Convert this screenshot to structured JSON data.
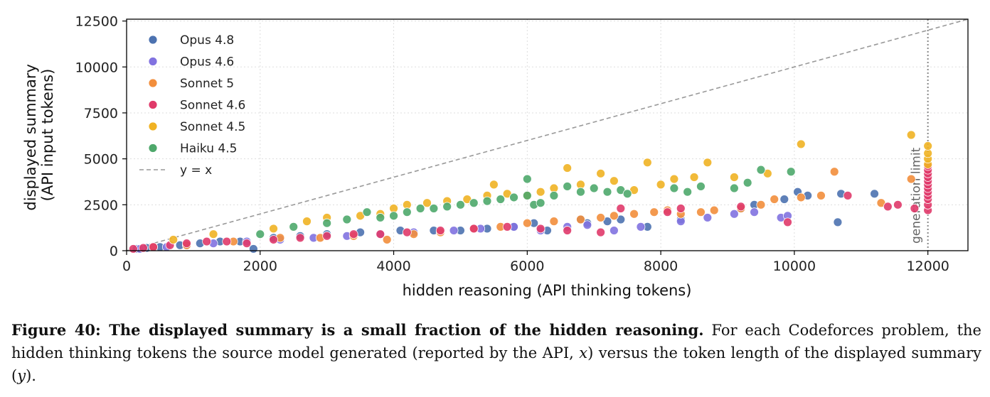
{
  "chart_data": {
    "type": "scatter",
    "xlabel": "hidden reasoning (API thinking tokens)",
    "ylabel": [
      "displayed summary",
      "(API input tokens)"
    ],
    "xlim": [
      0,
      12600
    ],
    "ylim": [
      0,
      12600
    ],
    "xticks": [
      "0",
      "2000",
      "4000",
      "6000",
      "8000",
      "10000",
      "12000"
    ],
    "yticks": [
      "0",
      "2500",
      "5000",
      "7500",
      "10000",
      "12500"
    ],
    "grid": true,
    "legend_position": "top-left",
    "reference_line": {
      "name": "y = x",
      "style": "dashed",
      "color": "#999999"
    },
    "vline": {
      "x": 12000,
      "label": "generation limit",
      "style": "dotted",
      "color": "#888888"
    },
    "series": [
      {
        "name": "Opus 4.8",
        "color": "#4C72B0",
        "x": [
          150,
          300,
          500,
          800,
          1100,
          1400,
          1700,
          1900,
          2200,
          2600,
          3000,
          3500,
          4100,
          4600,
          5000,
          5400,
          5800,
          6100,
          6300,
          6800,
          6900,
          7200,
          7400,
          7800,
          8300,
          9200,
          9400,
          9850,
          10050,
          10200,
          10650,
          10700,
          11200
        ],
        "y": [
          100,
          150,
          200,
          300,
          400,
          500,
          500,
          100,
          700,
          800,
          900,
          1000,
          1100,
          1100,
          1100,
          1200,
          1300,
          1500,
          1100,
          1700,
          1500,
          1600,
          1700,
          1300,
          1700,
          2300,
          2500,
          2800,
          3200,
          3000,
          1550,
          3100,
          3100
        ]
      },
      {
        "name": "Opus 4.6",
        "color": "#8172E0",
        "x": [
          200,
          600,
          900,
          1300,
          1800,
          2300,
          2800,
          3300,
          3800,
          4300,
          4900,
          5300,
          5800,
          6200,
          6600,
          6900,
          7300,
          7700,
          8300,
          8700,
          9100,
          9400,
          9800,
          9900
        ],
        "y": [
          100,
          200,
          300,
          400,
          500,
          600,
          700,
          800,
          900,
          1000,
          1100,
          1200,
          1300,
          1100,
          1300,
          1400,
          1100,
          1300,
          1600,
          1800,
          2000,
          2100,
          1800,
          1900
        ]
      },
      {
        "name": "Sonnet 5",
        "color": "#F28E3C",
        "x": [
          400,
          900,
          1600,
          2300,
          2900,
          3400,
          3900,
          4300,
          4700,
          5200,
          5600,
          6000,
          6400,
          6800,
          7100,
          7300,
          7600,
          7900,
          8100,
          8300,
          8600,
          8800,
          9200,
          9500,
          9700,
          10100,
          10400,
          10600,
          11300,
          11750
        ],
        "y": [
          200,
          300,
          500,
          700,
          700,
          800,
          600,
          900,
          1000,
          1200,
          1300,
          1500,
          1600,
          1700,
          1800,
          1900,
          2000,
          2100,
          2200,
          2000,
          2100,
          2200,
          2300,
          2500,
          2800,
          2900,
          3000,
          4300,
          2600,
          3900
        ]
      },
      {
        "name": "Sonnet 4.6",
        "color": "#E03A6A",
        "x": [
          100,
          250,
          400,
          650,
          900,
          1200,
          1500,
          1800,
          2200,
          2600,
          3000,
          3400,
          3800,
          4200,
          4700,
          5200,
          5700,
          6200,
          6600,
          7100,
          7400,
          8100,
          8300,
          9200,
          9900,
          10800,
          11400,
          11550,
          11800,
          12000,
          12000,
          12000,
          12000,
          12000,
          12000,
          12000,
          12000,
          12000,
          12000,
          12000,
          12000
        ],
        "y": [
          100,
          150,
          200,
          300,
          400,
          500,
          500,
          400,
          600,
          700,
          800,
          900,
          900,
          1000,
          1100,
          1200,
          1300,
          1200,
          1100,
          1000,
          2300,
          2100,
          2300,
          2400,
          1550,
          3000,
          2400,
          2500,
          2300,
          2200,
          2500,
          2800,
          3000,
          3200,
          3400,
          3600,
          3800,
          4000,
          4200,
          4400,
          4600
        ]
      },
      {
        "name": "Sonnet 4.5",
        "color": "#F0B223",
        "x": [
          700,
          1300,
          2200,
          2700,
          3000,
          3500,
          3800,
          4000,
          4200,
          4500,
          4800,
          5100,
          5400,
          5500,
          5700,
          6000,
          6200,
          6400,
          6600,
          6800,
          7100,
          7300,
          7600,
          7800,
          8000,
          8200,
          8500,
          8700,
          9100,
          9600,
          10100,
          11750,
          12000,
          12000,
          12000,
          12000
        ],
        "y": [
          600,
          900,
          1200,
          1600,
          1800,
          1900,
          2000,
          2300,
          2500,
          2600,
          2700,
          2800,
          3000,
          3600,
          3100,
          3000,
          3200,
          3400,
          4500,
          3600,
          4200,
          3800,
          3300,
          4800,
          3600,
          3900,
          4000,
          4800,
          4000,
          4200,
          5800,
          6300,
          4700,
          5000,
          5300,
          5700
        ]
      },
      {
        "name": "Haiku 4.5",
        "color": "#4EA86B",
        "x": [
          2000,
          2500,
          3000,
          3300,
          3600,
          3800,
          4000,
          4200,
          4400,
          4600,
          4800,
          5000,
          5200,
          5400,
          5600,
          5800,
          6000,
          6000,
          6100,
          6200,
          6400,
          6600,
          6800,
          7000,
          7200,
          7400,
          7500,
          8200,
          8400,
          8600,
          9100,
          9300,
          9500,
          9950
        ],
        "y": [
          900,
          1300,
          1500,
          1700,
          2100,
          1800,
          1900,
          2100,
          2300,
          2300,
          2400,
          2500,
          2600,
          2700,
          2800,
          2900,
          3000,
          3900,
          2500,
          2600,
          3000,
          3500,
          3200,
          3400,
          3200,
          3300,
          3100,
          3400,
          3200,
          3500,
          3400,
          3700,
          4400,
          4300
        ]
      }
    ]
  },
  "caption": {
    "lead": "Figure 40: The displayed summary is a small fraction of the hidden reasoning.",
    "rest_before_x": " For each Codeforces problem, the hidden thinking tokens the source model generated (reported by the API, ",
    "x_var": "x",
    "rest_between": ") versus the token length of the displayed summary (",
    "y_var": "y",
    "rest_end": ")."
  }
}
